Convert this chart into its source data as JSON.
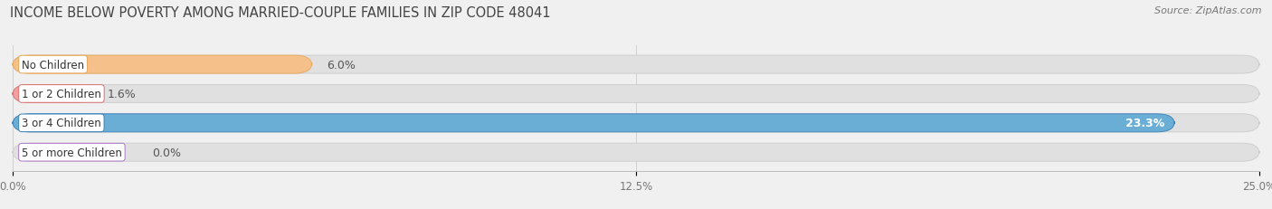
{
  "title": "INCOME BELOW POVERTY AMONG MARRIED-COUPLE FAMILIES IN ZIP CODE 48041",
  "source": "Source: ZipAtlas.com",
  "categories": [
    "No Children",
    "1 or 2 Children",
    "3 or 4 Children",
    "5 or more Children"
  ],
  "values": [
    6.0,
    1.6,
    23.3,
    0.0
  ],
  "bar_colors": [
    "#f5c08a",
    "#f0a0a0",
    "#6aaed6",
    "#c8a8d8"
  ],
  "bar_edge_colors": [
    "#e8a855",
    "#d87070",
    "#3a80b8",
    "#a878c0"
  ],
  "bg_color": "#f0f0f0",
  "bar_bg_color": "#e0e0e0",
  "bar_bg_edge": "#cccccc",
  "xlim": [
    0,
    25.0
  ],
  "xticks": [
    0.0,
    12.5,
    25.0
  ],
  "xtick_labels": [
    "0.0%",
    "12.5%",
    "25.0%"
  ],
  "bar_height": 0.62,
  "value_fontsize": 9,
  "label_fontsize": 8.5,
  "title_fontsize": 10.5,
  "source_fontsize": 8
}
